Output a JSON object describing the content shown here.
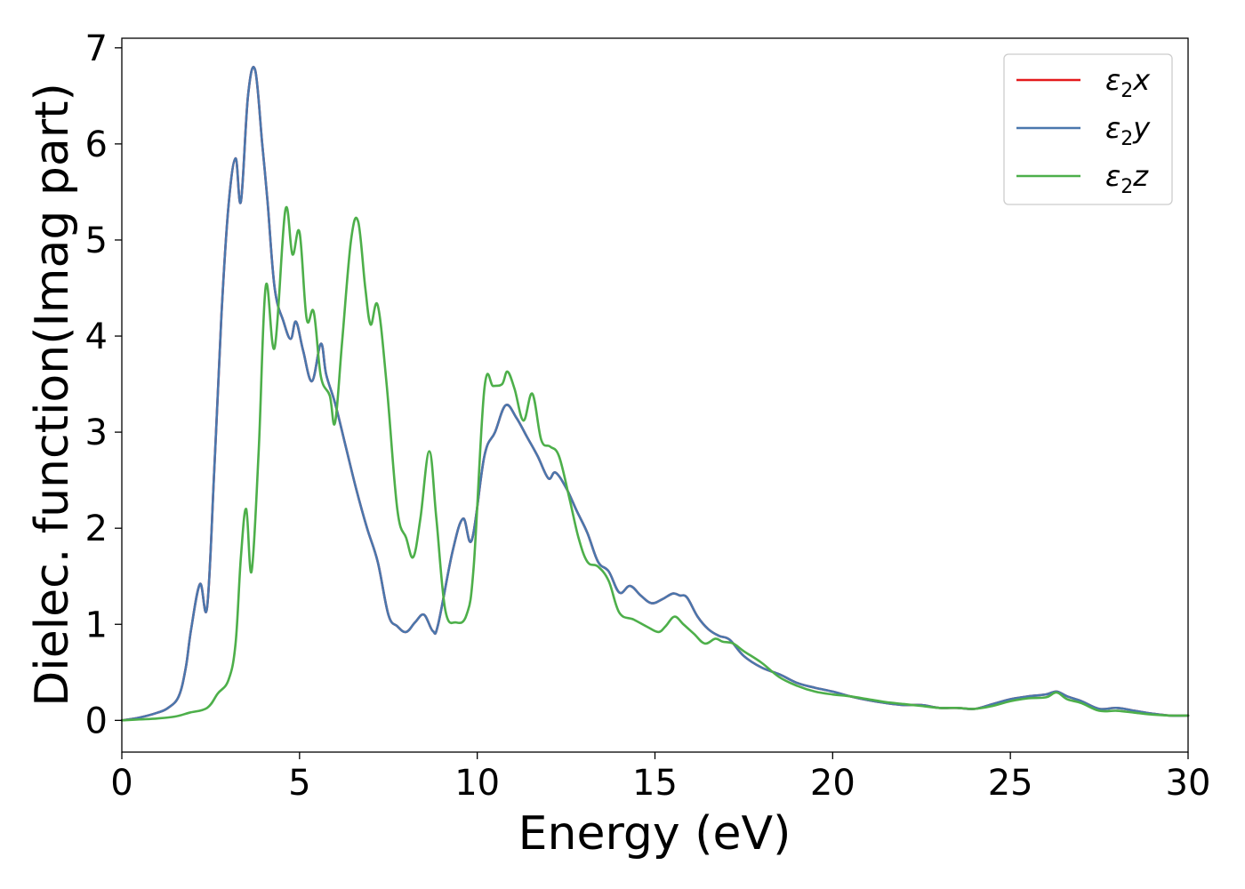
{
  "chart_data": {
    "type": "line",
    "title": "",
    "xlabel": "Energy (eV)",
    "ylabel": "Dielec. function(Imag part)",
    "xlim": [
      0,
      30
    ],
    "ylim": [
      -0.33,
      7.1
    ],
    "xticks": [
      0,
      5,
      10,
      15,
      20,
      25,
      30
    ],
    "yticks": [
      0,
      1,
      2,
      3,
      4,
      5,
      6,
      7
    ],
    "xtick_labels": [
      "0",
      "5",
      "10",
      "15",
      "20",
      "25",
      "30"
    ],
    "ytick_labels": [
      "0",
      "1",
      "2",
      "3",
      "4",
      "5",
      "6",
      "7"
    ],
    "grid": false,
    "legend_position": "top-right",
    "series": [
      {
        "name": "ε2x",
        "name_base": "ε",
        "name_sub": "2",
        "name_suffix": "x",
        "color": "#e41a1c",
        "x": [
          0,
          0.5,
          1.0,
          1.3,
          1.6,
          1.8,
          1.95,
          2.2,
          2.4,
          2.6,
          2.8,
          3.0,
          3.2,
          3.35,
          3.55,
          3.75,
          3.95,
          4.1,
          4.3,
          4.55,
          4.75,
          4.9,
          5.1,
          5.35,
          5.6,
          5.75,
          6.0,
          6.3,
          6.6,
          6.9,
          7.2,
          7.5,
          7.75,
          8.0,
          8.25,
          8.5,
          8.75,
          8.9,
          9.3,
          9.6,
          9.85,
          10.2,
          10.5,
          10.8,
          11.1,
          11.4,
          11.7,
          12.0,
          12.2,
          12.5,
          12.8,
          13.1,
          13.4,
          13.7,
          14.0,
          14.3,
          14.6,
          14.9,
          15.2,
          15.5,
          15.7,
          15.9,
          16.2,
          16.5,
          16.8,
          17.1,
          17.5,
          18.0,
          18.5,
          19.0,
          19.5,
          20.0,
          20.5,
          21.0,
          21.5,
          22.0,
          22.5,
          23.0,
          23.5,
          24.0,
          24.5,
          25.0,
          25.5,
          26.0,
          26.3,
          26.6,
          27.0,
          27.5,
          28.0,
          28.5,
          29.0,
          29.5,
          30.0
        ],
        "y": [
          0.0,
          0.03,
          0.08,
          0.13,
          0.25,
          0.55,
          0.95,
          1.42,
          1.18,
          2.6,
          4.2,
          5.35,
          5.85,
          5.4,
          6.5,
          6.77,
          6.0,
          5.4,
          4.5,
          4.15,
          3.97,
          4.15,
          3.85,
          3.53,
          3.92,
          3.6,
          3.3,
          2.85,
          2.4,
          2.0,
          1.65,
          1.1,
          0.98,
          0.92,
          1.02,
          1.1,
          0.93,
          1.0,
          1.75,
          2.1,
          1.88,
          2.75,
          3.0,
          3.28,
          3.15,
          2.95,
          2.75,
          2.52,
          2.58,
          2.42,
          2.18,
          1.95,
          1.65,
          1.55,
          1.33,
          1.4,
          1.3,
          1.22,
          1.26,
          1.32,
          1.3,
          1.28,
          1.08,
          0.95,
          0.88,
          0.84,
          0.67,
          0.55,
          0.48,
          0.39,
          0.34,
          0.3,
          0.25,
          0.21,
          0.18,
          0.16,
          0.16,
          0.13,
          0.13,
          0.12,
          0.17,
          0.22,
          0.25,
          0.27,
          0.3,
          0.25,
          0.2,
          0.12,
          0.13,
          0.1,
          0.07,
          0.05,
          0.05
        ]
      },
      {
        "name": "ε2y",
        "name_base": "ε",
        "name_sub": "2",
        "name_suffix": "y",
        "color": "#4a77ad",
        "x": [
          0,
          0.5,
          1.0,
          1.3,
          1.6,
          1.8,
          1.95,
          2.2,
          2.4,
          2.6,
          2.8,
          3.0,
          3.2,
          3.35,
          3.55,
          3.75,
          3.95,
          4.1,
          4.3,
          4.55,
          4.75,
          4.9,
          5.1,
          5.35,
          5.6,
          5.75,
          6.0,
          6.3,
          6.6,
          6.9,
          7.2,
          7.5,
          7.75,
          8.0,
          8.25,
          8.5,
          8.75,
          8.9,
          9.3,
          9.6,
          9.85,
          10.2,
          10.5,
          10.8,
          11.1,
          11.4,
          11.7,
          12.0,
          12.2,
          12.5,
          12.8,
          13.1,
          13.4,
          13.7,
          14.0,
          14.3,
          14.6,
          14.9,
          15.2,
          15.5,
          15.7,
          15.9,
          16.2,
          16.5,
          16.8,
          17.1,
          17.5,
          18.0,
          18.5,
          19.0,
          19.5,
          20.0,
          20.5,
          21.0,
          21.5,
          22.0,
          22.5,
          23.0,
          23.5,
          24.0,
          24.5,
          25.0,
          25.5,
          26.0,
          26.3,
          26.6,
          27.0,
          27.5,
          28.0,
          28.5,
          29.0,
          29.5,
          30.0
        ],
        "y": [
          0.0,
          0.03,
          0.08,
          0.13,
          0.25,
          0.55,
          0.95,
          1.42,
          1.18,
          2.6,
          4.2,
          5.35,
          5.85,
          5.4,
          6.5,
          6.77,
          6.0,
          5.4,
          4.5,
          4.15,
          3.97,
          4.15,
          3.85,
          3.53,
          3.92,
          3.6,
          3.3,
          2.85,
          2.4,
          2.0,
          1.65,
          1.1,
          0.98,
          0.92,
          1.02,
          1.1,
          0.93,
          1.0,
          1.75,
          2.1,
          1.88,
          2.75,
          3.0,
          3.28,
          3.15,
          2.95,
          2.75,
          2.52,
          2.58,
          2.42,
          2.18,
          1.95,
          1.65,
          1.55,
          1.33,
          1.4,
          1.3,
          1.22,
          1.26,
          1.32,
          1.3,
          1.28,
          1.08,
          0.95,
          0.88,
          0.84,
          0.67,
          0.55,
          0.48,
          0.39,
          0.34,
          0.3,
          0.25,
          0.21,
          0.18,
          0.16,
          0.16,
          0.13,
          0.13,
          0.12,
          0.17,
          0.22,
          0.25,
          0.27,
          0.3,
          0.25,
          0.2,
          0.12,
          0.13,
          0.1,
          0.07,
          0.05,
          0.05
        ]
      },
      {
        "name": "ε2z",
        "name_base": "ε",
        "name_sub": "2",
        "name_suffix": "z",
        "color": "#4daf4a",
        "x": [
          0,
          0.5,
          1.0,
          1.5,
          1.9,
          2.4,
          2.7,
          3.0,
          3.2,
          3.35,
          3.5,
          3.65,
          3.85,
          4.05,
          4.3,
          4.6,
          4.8,
          5.0,
          5.2,
          5.4,
          5.6,
          5.85,
          6.0,
          6.2,
          6.45,
          6.65,
          6.85,
          7.0,
          7.2,
          7.45,
          7.75,
          8.0,
          8.2,
          8.4,
          8.65,
          8.85,
          9.1,
          9.4,
          9.7,
          9.9,
          10.2,
          10.45,
          10.7,
          10.85,
          11.05,
          11.3,
          11.55,
          11.8,
          12.05,
          12.3,
          12.6,
          12.85,
          13.1,
          13.4,
          13.7,
          14.0,
          14.4,
          14.8,
          15.1,
          15.3,
          15.55,
          15.8,
          16.1,
          16.4,
          16.7,
          16.9,
          17.2,
          17.5,
          18.0,
          18.5,
          19.0,
          19.5,
          20.0,
          20.5,
          21.0,
          21.5,
          22.0,
          22.5,
          23.0,
          23.5,
          24.0,
          24.5,
          25.0,
          25.5,
          26.0,
          26.3,
          26.6,
          27.0,
          27.5,
          28.0,
          28.5,
          29.0,
          29.5,
          30.0
        ],
        "y": [
          0.0,
          0.01,
          0.02,
          0.04,
          0.08,
          0.13,
          0.28,
          0.42,
          0.8,
          1.7,
          2.2,
          1.55,
          2.8,
          4.52,
          3.88,
          5.31,
          4.85,
          5.08,
          4.18,
          4.25,
          3.58,
          3.38,
          3.1,
          3.95,
          5.0,
          5.19,
          4.5,
          4.12,
          4.32,
          3.5,
          2.2,
          1.9,
          1.7,
          2.1,
          2.8,
          2.1,
          1.15,
          1.02,
          1.1,
          1.6,
          3.45,
          3.48,
          3.5,
          3.63,
          3.45,
          3.12,
          3.4,
          2.92,
          2.85,
          2.75,
          2.3,
          1.9,
          1.65,
          1.6,
          1.45,
          1.12,
          1.05,
          0.97,
          0.92,
          0.98,
          1.08,
          1.0,
          0.9,
          0.8,
          0.85,
          0.82,
          0.8,
          0.72,
          0.6,
          0.45,
          0.36,
          0.3,
          0.27,
          0.25,
          0.22,
          0.19,
          0.17,
          0.15,
          0.13,
          0.13,
          0.12,
          0.15,
          0.2,
          0.23,
          0.24,
          0.29,
          0.22,
          0.18,
          0.1,
          0.1,
          0.08,
          0.06,
          0.05,
          0.05
        ]
      }
    ]
  }
}
